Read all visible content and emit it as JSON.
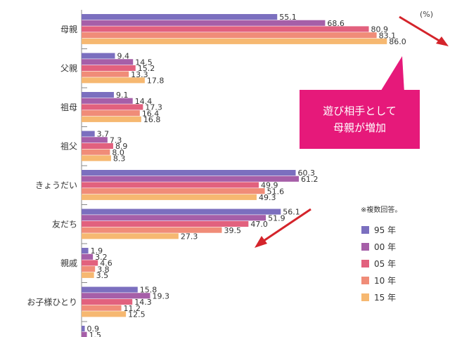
{
  "chart_data": {
    "type": "bar",
    "orientation": "horizontal",
    "unit_label": "(%)",
    "categories": [
      "母親",
      "父親",
      "祖母",
      "祖父",
      "きょうだい",
      "友だち",
      "親戚",
      "お子様ひとり",
      ""
    ],
    "series": [
      {
        "name": "95 年",
        "color": "#7b6fbf",
        "values": [
          55.1,
          9.4,
          9.1,
          3.7,
          60.3,
          56.1,
          1.9,
          15.8,
          0.9
        ]
      },
      {
        "name": "00 年",
        "color": "#a65fa8",
        "values": [
          68.6,
          14.5,
          14.4,
          7.3,
          61.2,
          51.9,
          3.2,
          19.3,
          1.5
        ]
      },
      {
        "name": "05 年",
        "color": "#e2617e",
        "values": [
          80.9,
          15.2,
          17.3,
          8.9,
          49.9,
          47.0,
          4.6,
          14.3,
          null
        ]
      },
      {
        "name": "10 年",
        "color": "#f08c78",
        "values": [
          83.1,
          13.3,
          16.4,
          8.0,
          51.6,
          39.5,
          3.8,
          11.2,
          null
        ]
      },
      {
        "name": "15 年",
        "color": "#f6b871",
        "values": [
          86.0,
          17.8,
          16.8,
          8.3,
          49.3,
          27.3,
          3.5,
          12.5,
          null
        ]
      }
    ],
    "legend": {
      "title": "※複数回答。",
      "position": "right"
    }
  },
  "callout": {
    "line1": "遊び相手として",
    "line2": "母親が増加"
  }
}
